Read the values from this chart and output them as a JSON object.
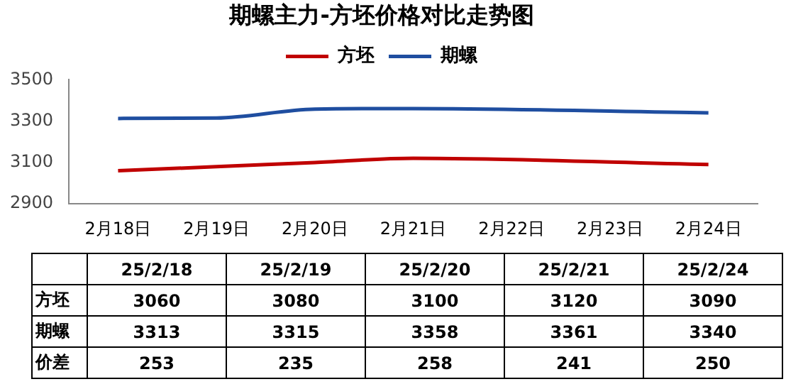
{
  "chart_data": [
    {
      "type": "line",
      "title": "期螺主力-方坯价格对比走势图",
      "x": [
        "--02-18",
        "--02-19",
        "--02-20",
        "--02-21",
        "--02-24"
      ],
      "series": [
        {
          "name": "方坯",
          "color": "#c00000",
          "values": [
            3060,
            3080,
            3100,
            3120,
            3090
          ]
        },
        {
          "name": "期螺",
          "color": "#1f4ea0",
          "values": [
            3313,
            3315,
            3358,
            3361,
            3340
          ]
        }
      ],
      "xlim": [
        "--02-17T12:00",
        "--02-24T12:00"
      ],
      "xticks": [
        {
          "value": "--02-18",
          "label": "2月18日"
        },
        {
          "value": "--02-19",
          "label": "2月19日"
        },
        {
          "value": "--02-20",
          "label": "2月20日"
        },
        {
          "value": "--02-21",
          "label": "2月21日"
        },
        {
          "value": "--02-22",
          "label": "2月22日"
        },
        {
          "value": "--02-23",
          "label": "2月23日"
        },
        {
          "value": "--02-24",
          "label": "2月24日"
        }
      ],
      "ylim": [
        2900,
        3500
      ],
      "yticks": [
        2900,
        3100,
        3300,
        3500
      ],
      "grid": false,
      "legend": "top"
    },
    {
      "type": "other",
      "categories": [
        "25/2/18",
        "25/2/19",
        "25/2/20",
        "25/2/21",
        "25/2/24"
      ],
      "series": [
        {
          "name": "方坯",
          "values": [
            3060,
            3080,
            3100,
            3120,
            3090
          ]
        },
        {
          "name": "期螺",
          "values": [
            3313,
            3315,
            3358,
            3361,
            3340
          ]
        },
        {
          "name": "价差",
          "values": [
            253,
            235,
            258,
            241,
            250
          ]
        }
      ],
      "data_labels": true
    }
  ]
}
